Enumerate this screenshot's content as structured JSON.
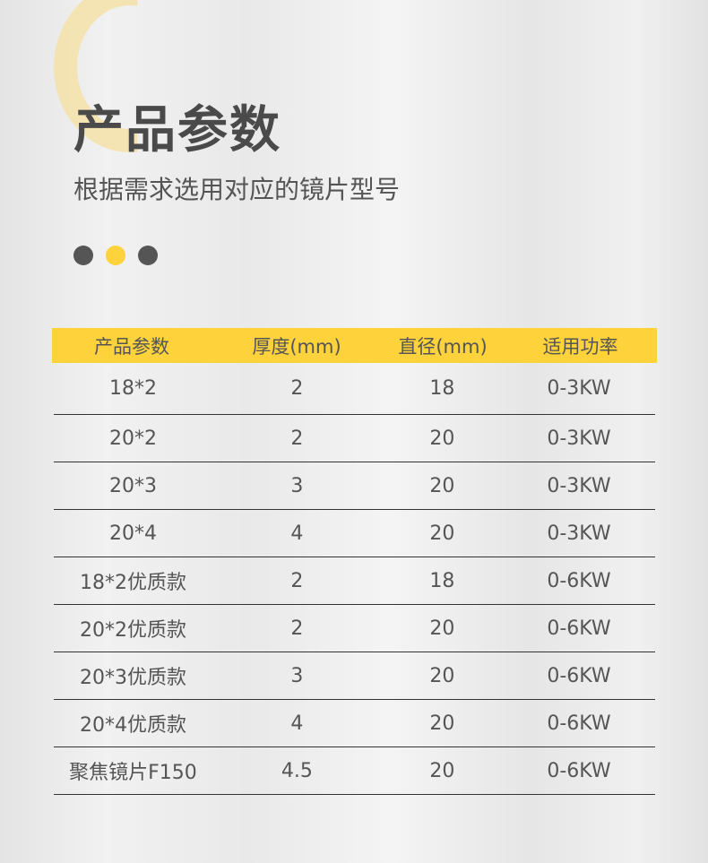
{
  "title": "产品参数",
  "subtitle": "根据需求选用对应的镜片型号",
  "dots": [
    "#555555",
    "#fdd23a",
    "#555555"
  ],
  "accent": "#fdd23a",
  "table": {
    "headers": [
      "产品参数",
      "厚度(mm)",
      "直径(mm)",
      "适用功率"
    ],
    "rows": [
      [
        "18*2",
        "2",
        "18",
        "0-3KW"
      ],
      [
        "20*2",
        "2",
        "20",
        "0-3KW"
      ],
      [
        "20*3",
        "3",
        "20",
        "0-3KW"
      ],
      [
        "20*4",
        "4",
        "20",
        "0-3KW"
      ],
      [
        "18*2优质款",
        "2",
        "18",
        "0-6KW"
      ],
      [
        "20*2优质款",
        "2",
        "20",
        "0-6KW"
      ],
      [
        "20*3优质款",
        "3",
        "20",
        "0-6KW"
      ],
      [
        "20*4优质款",
        "4",
        "20",
        "0-6KW"
      ],
      [
        "聚焦镜片F150",
        "4.5",
        "20",
        "0-6KW"
      ]
    ]
  }
}
